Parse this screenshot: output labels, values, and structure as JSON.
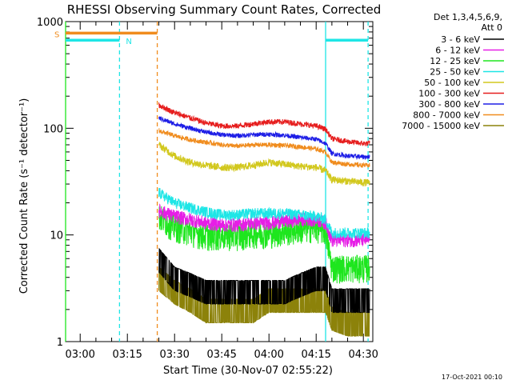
{
  "chart_data": {
    "type": "line",
    "title": "RHESSI Observing Summary Count Rates, Corrected",
    "xlabel": "Start Time (30-Nov-07 02:55:22)",
    "ylabel": "Corrected Count Rate (s⁻¹ detector⁻¹)",
    "y_scale": "log",
    "ylim": [
      1,
      1000
    ],
    "xlim": [
      "02:55:22",
      "04:33:00"
    ],
    "x_ticks": [
      "03:00",
      "03:15",
      "03:30",
      "03:45",
      "04:00",
      "04:15",
      "04:30"
    ],
    "y_ticks": [
      "1",
      "10",
      "100",
      "1000"
    ],
    "legend": {
      "placement": "right",
      "header": [
        "Det 1,3,4,5,6,9,",
        "Att 0"
      ],
      "entries": [
        {
          "label": "3 - 6 keV",
          "color": "#000000"
        },
        {
          "label": "6 - 12 keV",
          "color": "#e61ee6"
        },
        {
          "label": "12 - 25 keV",
          "color": "#1ee61e"
        },
        {
          "label": "25 - 50 keV",
          "color": "#1ee6e6"
        },
        {
          "label": "50 - 100 keV",
          "color": "#d2c81e"
        },
        {
          "label": "100 - 300 keV",
          "color": "#e61e1e"
        },
        {
          "label": "300 - 800 keV",
          "color": "#1e1ee6"
        },
        {
          "label": "800 - 7000 keV",
          "color": "#f08c1e"
        },
        {
          "label": "7000 - 15000 keV",
          "color": "#8c820a"
        }
      ]
    },
    "x": [
      "03:25",
      "03:30",
      "03:35",
      "03:40",
      "03:45",
      "03:50",
      "03:55",
      "04:00",
      "04:05",
      "04:10",
      "04:15",
      "04:18",
      "04:20",
      "04:25",
      "04:30",
      "04:32"
    ],
    "series": [
      {
        "name": "3 - 6 keV",
        "color": "#000000",
        "noise": 0.5,
        "values": [
          6,
          4,
          3.5,
          3,
          3,
          3,
          3,
          3,
          3,
          3.5,
          4,
          4,
          2.5,
          2.5,
          2.5,
          2.5
        ]
      },
      {
        "name": "6 - 12 keV",
        "color": "#e61ee6",
        "noise": 0.15,
        "values": [
          17,
          15,
          14,
          13,
          12.5,
          12.5,
          13,
          13,
          13.5,
          14,
          14,
          13,
          9,
          9,
          9,
          9
        ]
      },
      {
        "name": "12 - 25 keV",
        "color": "#1ee61e",
        "noise": 0.3,
        "values": [
          15,
          12,
          11,
          10,
          10,
          10,
          10.5,
          10.5,
          11,
          11.5,
          12,
          11,
          5,
          5,
          5,
          5
        ]
      },
      {
        "name": "25 - 50 keV",
        "color": "#1ee6e6",
        "noise": 0.12,
        "values": [
          25,
          20,
          18,
          16.5,
          15.5,
          15.5,
          16,
          16,
          16,
          15.5,
          15,
          14,
          10.5,
          10.5,
          10.5,
          10.5
        ]
      },
      {
        "name": "50 - 100 keV",
        "color": "#d2c81e",
        "noise": 0.08,
        "values": [
          70,
          55,
          48,
          45,
          43,
          43,
          45,
          48,
          46,
          44,
          43,
          40,
          33,
          32,
          31,
          31
        ]
      },
      {
        "name": "100 - 300 keV",
        "color": "#e61e1e",
        "noise": 0.06,
        "values": [
          165,
          140,
          125,
          112,
          105,
          105,
          110,
          115,
          115,
          110,
          105,
          98,
          80,
          75,
          72,
          72
        ]
      },
      {
        "name": "300 - 800 keV",
        "color": "#1e1ee6",
        "noise": 0.05,
        "values": [
          125,
          110,
          100,
          92,
          87,
          85,
          87,
          88,
          86,
          82,
          79,
          72,
          58,
          55,
          54,
          54
        ]
      },
      {
        "name": "800 - 7000 keV",
        "color": "#f08c1e",
        "noise": 0.05,
        "values": [
          95,
          85,
          78,
          74,
          70,
          68,
          70,
          70,
          69,
          67,
          64,
          60,
          48,
          46,
          45,
          45
        ]
      },
      {
        "name": "7000 - 15000 keV",
        "color": "#8c820a",
        "noise": 0.6,
        "values": [
          4,
          3,
          2.5,
          2,
          2,
          2,
          2,
          2.5,
          2.5,
          2.5,
          2.5,
          2.5,
          1.7,
          1.5,
          1.5,
          1.5
        ]
      }
    ],
    "annotations": [
      {
        "label": "S",
        "color": "#f08c1e"
      },
      {
        "label": "N",
        "color": "#1ee6e6"
      }
    ],
    "flag_bars": [
      {
        "name": "S",
        "color": "#f08c1e",
        "start": "02:55:22",
        "end": "03:24:30",
        "value": 780
      },
      {
        "name": "N",
        "color": "#1ee6e6",
        "start": "02:55:22",
        "end": "03:12:30",
        "value": 670
      },
      {
        "name": "N",
        "color": "#1ee6e6",
        "start": "04:18:00",
        "end": "04:31:30",
        "value": 670
      }
    ],
    "vlines": [
      {
        "time": "02:55:22",
        "color": "#1ee61e",
        "style": "solid"
      },
      {
        "time": "03:12:30",
        "color": "#1ee6e6",
        "style": "dashed"
      },
      {
        "time": "03:24:30",
        "color": "#f08c1e",
        "style": "dashed"
      },
      {
        "time": "04:18:00",
        "color": "#1ee6e6",
        "style": "solid"
      },
      {
        "time": "04:31:30",
        "color": "#1ee6e6",
        "style": "dashed"
      }
    ],
    "grid": false
  },
  "footer": {
    "timestamp": "17-Oct-2021 00:10"
  }
}
